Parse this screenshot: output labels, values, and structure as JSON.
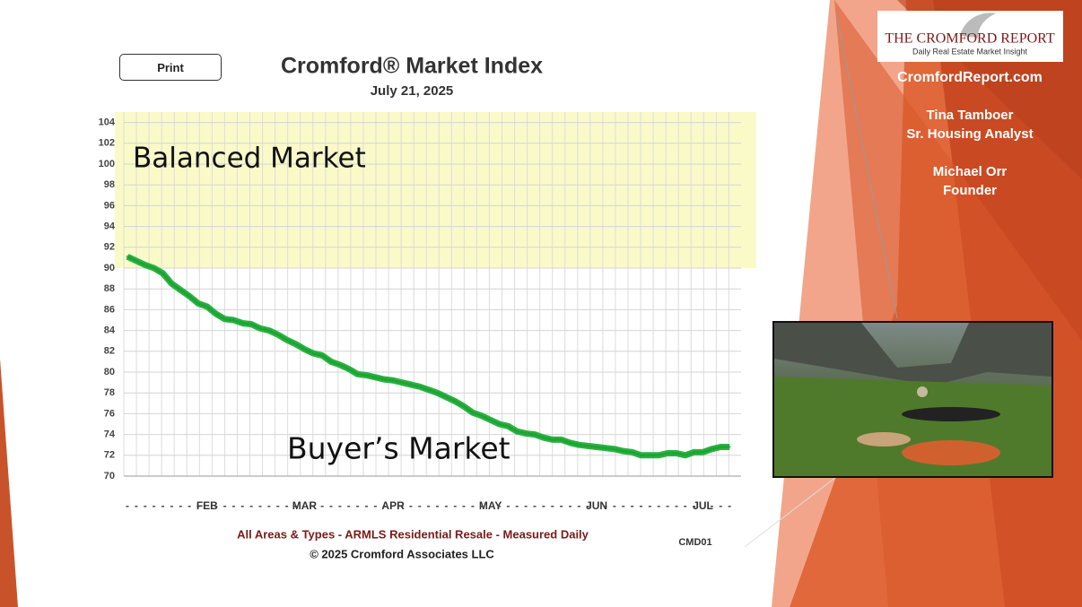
{
  "print_button": "Print",
  "sidebar": {
    "logo_title": "THE CROMFORD REPORT",
    "logo_subtitle": "Daily Real Estate Market Insight",
    "website": "CromfordReport.com",
    "people": [
      {
        "name": "Tina Tamboer",
        "role": "Sr. Housing Analyst"
      },
      {
        "name": "Michael Orr",
        "role": "Founder"
      }
    ]
  },
  "chart_data": {
    "type": "line",
    "title": "Cromford® Market Index",
    "subtitle": "July 21, 2025",
    "footnote": "All Areas & Types - ARMLS Residential Resale - Measured Daily",
    "copyright": "© 2025 Cromford Associates LLC",
    "code": "CMD01",
    "categories": [
      null,
      null,
      null,
      null,
      null,
      null,
      null,
      null,
      null,
      "FEB",
      null,
      null,
      null,
      null,
      null,
      null,
      null,
      null,
      null,
      null,
      "MAR",
      null,
      null,
      null,
      null,
      null,
      null,
      null,
      null,
      null,
      "APR",
      null,
      null,
      null,
      null,
      null,
      null,
      null,
      null,
      null,
      null,
      "MAY",
      null,
      null,
      null,
      null,
      null,
      null,
      null,
      null,
      null,
      null,
      null,
      "JUN",
      null,
      null,
      null,
      null,
      null,
      null,
      null,
      null,
      null,
      null,
      null,
      "JUL",
      null,
      null,
      null
    ],
    "series": [
      {
        "name": "Cromford Market Index",
        "color": "#27b43f",
        "values": [
          91.1,
          90.7,
          90.3,
          90.0,
          89.5,
          88.5,
          87.9,
          87.3,
          86.6,
          86.3,
          85.6,
          85.1,
          85.0,
          84.7,
          84.6,
          84.2,
          84.0,
          83.6,
          83.1,
          82.7,
          82.2,
          81.8,
          81.6,
          81.0,
          80.7,
          80.3,
          79.8,
          79.7,
          79.5,
          79.3,
          79.2,
          79.0,
          78.8,
          78.6,
          78.3,
          78.0,
          77.6,
          77.2,
          76.7,
          76.1,
          75.8,
          75.4,
          75.0,
          74.8,
          74.3,
          74.1,
          74.0,
          73.7,
          73.5,
          73.5,
          73.2,
          73.0,
          72.9,
          72.8,
          72.7,
          72.6,
          72.4,
          72.3,
          72.0,
          72.0,
          72.0,
          72.2,
          72.2,
          72.0,
          72.3,
          72.3,
          72.6,
          72.8,
          72.8
        ]
      }
    ],
    "zones": [
      {
        "label": "Balanced Market",
        "range": [
          90,
          105
        ],
        "color": "#fafac8"
      },
      {
        "label": "Buyer’s Market",
        "range": [
          70,
          90
        ],
        "color": "#ffffff"
      }
    ],
    "ylim": [
      70,
      105
    ],
    "yticks": [
      70,
      72,
      74,
      76,
      78,
      80,
      82,
      84,
      86,
      88,
      90,
      92,
      94,
      96,
      98,
      100,
      102,
      104
    ],
    "grid": true
  }
}
